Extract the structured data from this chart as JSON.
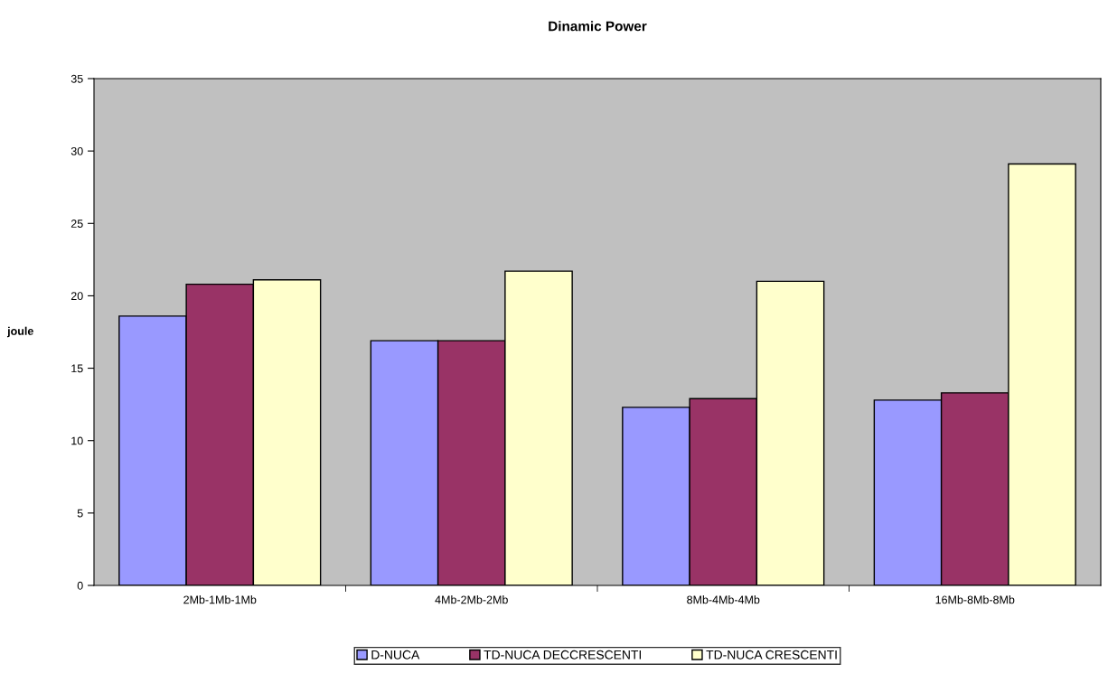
{
  "chart_data": {
    "type": "bar",
    "title": "Dinamic Power",
    "ylabel": "joule",
    "categories": [
      "2Mb-1Mb-1Mb",
      "4Mb-2Mb-2Mb",
      "8Mb-4Mb-4Mb",
      "16Mb-8Mb-8Mb"
    ],
    "series": [
      {
        "name": "D-NUCA",
        "color": "#9999ff",
        "values": [
          18.6,
          16.9,
          12.3,
          12.8
        ]
      },
      {
        "name": "TD-NUCA DECCRESCENTI",
        "color": "#993366",
        "values": [
          20.8,
          16.9,
          12.9,
          13.3
        ]
      },
      {
        "name": "TD-NUCA CRESCENTI",
        "color": "#ffffcc",
        "values": [
          21.1,
          21.7,
          21.0,
          29.1
        ]
      }
    ],
    "ylim": [
      0,
      35
    ],
    "yticks": [
      0,
      5,
      10,
      15,
      20,
      25,
      30,
      35
    ],
    "grid": false,
    "legend": "bottom"
  }
}
